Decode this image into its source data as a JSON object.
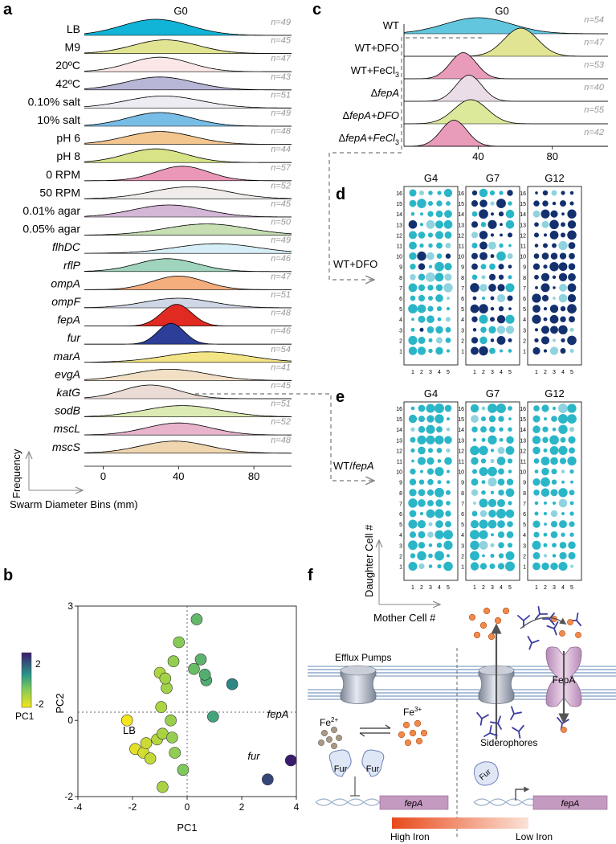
{
  "panel_labels": {
    "a": "a",
    "b": "b",
    "c": "c",
    "d": "d",
    "e": "e",
    "f": "f"
  },
  "colors": {
    "teal_dot": "#2bb6c8",
    "navy_dot": "#13306f",
    "light_teal_dot": "#8fd3df",
    "fepA_fill": "#e02a22",
    "fur_fill": "#2c3e97",
    "fepA_box": "#c59ac0",
    "iron_grad_start": "#e84a1c",
    "iron_grad_end": "#fbe2d6"
  },
  "panel_a": {
    "header": "G0",
    "xlabel": "Swarm Diameter Bins (mm)",
    "ylabel": "Frequency",
    "xticks": [
      "0",
      "40",
      "80"
    ],
    "rows": [
      {
        "label": "LB",
        "italic": false,
        "n": "n=49",
        "color": "#11b3d6",
        "peak": 28,
        "sd": 18,
        "amp": 1.0
      },
      {
        "label": "M9",
        "italic": false,
        "n": "n=45",
        "color": "#e1e493",
        "peak": 33,
        "sd": 17,
        "amp": 0.85
      },
      {
        "label": "20ºC",
        "italic": false,
        "n": "n=47",
        "color": "#fbe7e7",
        "peak": 30,
        "sd": 16,
        "amp": 0.9
      },
      {
        "label": "42ºC",
        "italic": false,
        "n": "n=43",
        "color": "#b8b6d6",
        "peak": 30,
        "sd": 18,
        "amp": 0.8
      },
      {
        "label": "0.10% salt",
        "italic": false,
        "n": "n=51",
        "color": "#ececf2",
        "peak": 32,
        "sd": 20,
        "amp": 0.75
      },
      {
        "label": "10% salt",
        "italic": false,
        "n": "n=49",
        "color": "#78bde6",
        "peak": 30,
        "sd": 17,
        "amp": 0.85
      },
      {
        "label": "pH 6",
        "italic": false,
        "n": "n=48",
        "color": "#f2c68e",
        "peak": 30,
        "sd": 18,
        "amp": 0.8
      },
      {
        "label": "pH 8",
        "italic": false,
        "n": "n=44",
        "color": "#d7e386",
        "peak": 28,
        "sd": 16,
        "amp": 0.85
      },
      {
        "label": "0 RPM",
        "italic": false,
        "n": "n=57",
        "color": "#ea97b8",
        "peak": 42,
        "sd": 14,
        "amp": 0.9
      },
      {
        "label": "50 RPM",
        "italic": false,
        "n": "n=52",
        "color": "#efecea",
        "peak": 46,
        "sd": 20,
        "amp": 0.75
      },
      {
        "label": "0.01% agar",
        "italic": false,
        "n": "n=45",
        "color": "#d4b6d6",
        "peak": 35,
        "sd": 19,
        "amp": 0.75
      },
      {
        "label": "0.05% agar",
        "italic": false,
        "n": "n=50",
        "color": "#c7dfb3",
        "peak": 55,
        "sd": 22,
        "amp": 0.7
      },
      {
        "label": "flhDC",
        "italic": true,
        "n": "n=49",
        "color": "#d6eef6",
        "peak": 60,
        "sd": 22,
        "amp": 0.6
      },
      {
        "label": "rflP",
        "italic": true,
        "n": "n=46",
        "color": "#9fd4bd",
        "peak": 34,
        "sd": 16,
        "amp": 0.8
      },
      {
        "label": "ompA",
        "italic": true,
        "n": "n=47",
        "color": "#f4ad7d",
        "peak": 40,
        "sd": 14,
        "amp": 0.85
      },
      {
        "label": "ompF",
        "italic": true,
        "n": "n=51",
        "color": "#cfd6e6",
        "peak": 40,
        "sd": 18,
        "amp": 0.6
      },
      {
        "label": "fepA",
        "italic": true,
        "n": "n=48",
        "color": "#e02a22",
        "peak": 39,
        "sd": 8,
        "amp": 1.35
      },
      {
        "label": "fur",
        "italic": true,
        "n": "n=46",
        "color": "#2c3e97",
        "peak": 36,
        "sd": 7,
        "amp": 1.3
      },
      {
        "label": "marA",
        "italic": true,
        "n": "n=54",
        "color": "#f3e586",
        "peak": 55,
        "sd": 22,
        "amp": 0.65
      },
      {
        "label": "evgA",
        "italic": true,
        "n": "n=41",
        "color": "#f1e0c6",
        "peak": 35,
        "sd": 20,
        "amp": 0.7
      },
      {
        "label": "katG",
        "italic": true,
        "n": "n=45",
        "color": "#eadbd4",
        "peak": 25,
        "sd": 15,
        "amp": 0.85
      },
      {
        "label": "sodB",
        "italic": true,
        "n": "n=51",
        "color": "#dcebb4",
        "peak": 42,
        "sd": 20,
        "amp": 0.7
      },
      {
        "label": "mscL",
        "italic": true,
        "n": "n=52",
        "color": "#e8b4cc",
        "peak": 40,
        "sd": 17,
        "amp": 0.75
      },
      {
        "label": "mscS",
        "italic": true,
        "n": "n=48",
        "color": "#efd6b0",
        "peak": 38,
        "sd": 18,
        "amp": 0.75
      }
    ]
  },
  "panel_b": {
    "xlabel": "PC1",
    "ylabel": "PC2",
    "xticks": [
      "-4",
      "-2",
      "0",
      "2",
      "4"
    ],
    "yticks": [
      "3",
      "0",
      "-2"
    ],
    "colorbar_label": "PC1",
    "colorbar_ticks": [
      "2",
      "-2"
    ],
    "label_LB": "LB",
    "label_fepA": "fepA",
    "label_fur": "fur",
    "points": [
      {
        "x": -2.2,
        "y": 0.0
      },
      {
        "x": -1.9,
        "y": -0.75
      },
      {
        "x": -1.6,
        "y": -0.85
      },
      {
        "x": -1.35,
        "y": -1.0
      },
      {
        "x": -1.5,
        "y": -0.6
      },
      {
        "x": -1.1,
        "y": -0.5
      },
      {
        "x": -0.9,
        "y": -0.35
      },
      {
        "x": -0.55,
        "y": -0.45
      },
      {
        "x": -0.45,
        "y": -0.85
      },
      {
        "x": -0.6,
        "y": 0.0
      },
      {
        "x": -0.95,
        "y": 0.35
      },
      {
        "x": -0.75,
        "y": 0.85
      },
      {
        "x": -1.0,
        "y": 1.25
      },
      {
        "x": -0.8,
        "y": 1.1
      },
      {
        "x": -0.5,
        "y": 1.55
      },
      {
        "x": -0.3,
        "y": 2.05
      },
      {
        "x": 0.35,
        "y": 2.65
      },
      {
        "x": 0.25,
        "y": 1.35
      },
      {
        "x": 0.5,
        "y": 1.6
      },
      {
        "x": 0.7,
        "y": 1.05
      },
      {
        "x": 0.65,
        "y": 1.2
      },
      {
        "x": 0.95,
        "y": 0.1
      },
      {
        "x": 1.65,
        "y": 0.95
      },
      {
        "x": -0.15,
        "y": -1.3
      },
      {
        "x": -0.9,
        "y": -1.75
      },
      {
        "x": 3.8,
        "y": -1.05
      },
      {
        "x": 2.95,
        "y": -1.55
      }
    ]
  },
  "panel_c": {
    "header": "G0",
    "xticks": [
      "40",
      "80"
    ],
    "rows": [
      {
        "label_pre": "WT",
        "label_delta": false,
        "label_post": "",
        "n": "n=54",
        "color": "#62c6df",
        "peak": 40,
        "sd": 18,
        "amp": 0.8
      },
      {
        "label_pre": "WT+DFO",
        "label_delta": false,
        "label_post": "",
        "n": "n=47",
        "color": "#e1e493",
        "peak": 63,
        "sd": 9,
        "amp": 1.4
      },
      {
        "label_pre": "WT+FeCl",
        "label_delta": false,
        "label_post": "3",
        "n": "n=53",
        "color": "#e89cba",
        "peak": 32,
        "sd": 7,
        "amp": 1.3
      },
      {
        "label_pre": "fepA",
        "label_delta": true,
        "label_post": "",
        "n": "n=40",
        "color": "#ebdde8",
        "peak": 35,
        "sd": 7,
        "amp": 1.3
      },
      {
        "label_pre": "fepA+DFO",
        "label_delta": true,
        "label_post": "",
        "n": "n=55",
        "color": "#dce89a",
        "peak": 36,
        "sd": 9,
        "amp": 1.2
      },
      {
        "label_pre": "fepA+FeCl",
        "label_delta": true,
        "label_post": "3",
        "n": "n=42",
        "color": "#e89cba",
        "peak": 27,
        "sd": 7,
        "amp": 1.3
      }
    ]
  },
  "panel_d": {
    "row_label": "WT+DFO",
    "grids": [
      {
        "title": "G4",
        "mix": 0.08
      },
      {
        "title": "G7",
        "mix": 0.55
      },
      {
        "title": "G12",
        "mix": 0.88
      }
    ]
  },
  "panel_e": {
    "row_label": "WT/fepA",
    "grids": [
      {
        "title": "G4",
        "mix": 0.0
      },
      {
        "title": "G7",
        "mix": 0.0
      },
      {
        "title": "G12",
        "mix": 0.0
      }
    ],
    "ylabel": "Daughter Cell #",
    "xlabel": "Mother Cell #"
  },
  "grid_row_labels": [
    "16",
    "15",
    "14",
    "13",
    "12",
    "11",
    "10",
    "9",
    "8",
    "7",
    "6",
    "5",
    "4",
    "3",
    "2",
    "1"
  ],
  "grid_col_labels": [
    "1",
    "2",
    "3",
    "4",
    "5"
  ],
  "panel_f": {
    "efflux_label": "Efflux Pumps",
    "fe2_base": "Fe",
    "fe2_sup": "2+",
    "fe3_base": "Fe",
    "fe3_sup": "3+",
    "fur_label": "Fur",
    "gene_label": "fepA",
    "siderophores_label": "Siderophores",
    "fepA_protein_label": "FepA",
    "high_iron": "High Iron",
    "low_iron": "Low Iron"
  }
}
